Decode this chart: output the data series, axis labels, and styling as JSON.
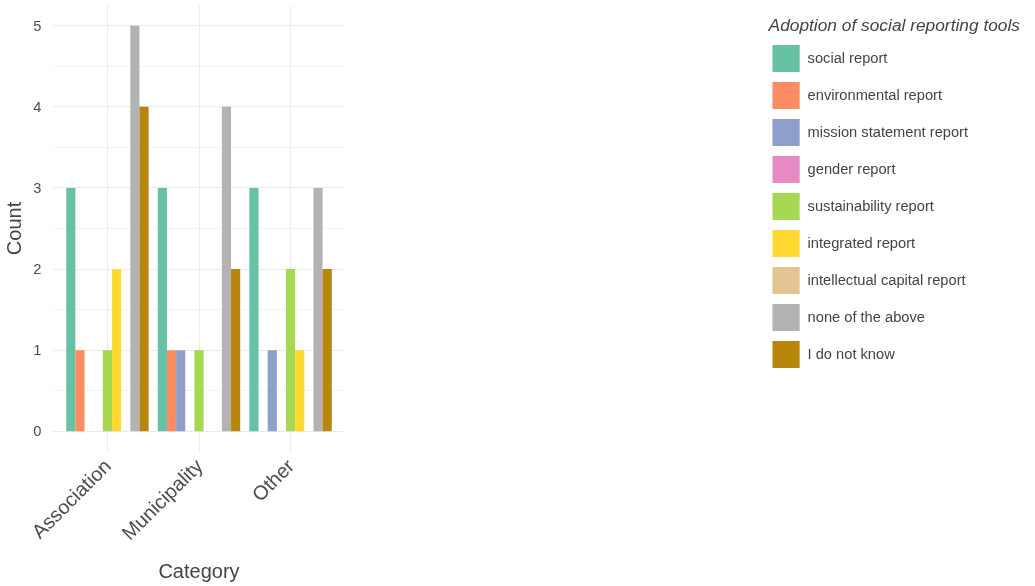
{
  "chart_data": {
    "type": "bar",
    "xlabel": "Category",
    "ylabel": "Count",
    "legend_title": "Adoption of social reporting tools",
    "categories": [
      "Association",
      "Municipality",
      "Other"
    ],
    "series": [
      {
        "name": "social report",
        "color": "#66c2a5",
        "values": [
          3,
          3,
          3
        ]
      },
      {
        "name": "environmental report",
        "color": "#fc8d62",
        "values": [
          1,
          1,
          null
        ]
      },
      {
        "name": "mission statement report",
        "color": "#8da0cb",
        "values": [
          null,
          1,
          1
        ]
      },
      {
        "name": "gender report",
        "color": "#e78ac3",
        "values": [
          null,
          null,
          null
        ]
      },
      {
        "name": "sustainability report",
        "color": "#a6d854",
        "values": [
          1,
          1,
          2
        ]
      },
      {
        "name": "integrated report",
        "color": "#ffd92f",
        "values": [
          2,
          null,
          1
        ]
      },
      {
        "name": "intellectual capital report",
        "color": "#e5c494",
        "values": [
          null,
          null,
          null
        ]
      },
      {
        "name": "none of the above",
        "color": "#b3b3b3",
        "values": [
          5,
          4,
          3
        ]
      },
      {
        "name": "I do not know",
        "color": "#b8860b",
        "values": [
          4,
          2,
          2
        ]
      }
    ],
    "ylim": [
      -0.25,
      5.25
    ],
    "yticks": [
      0,
      1,
      2,
      3,
      4,
      5
    ],
    "grid": true,
    "legend": "right"
  }
}
